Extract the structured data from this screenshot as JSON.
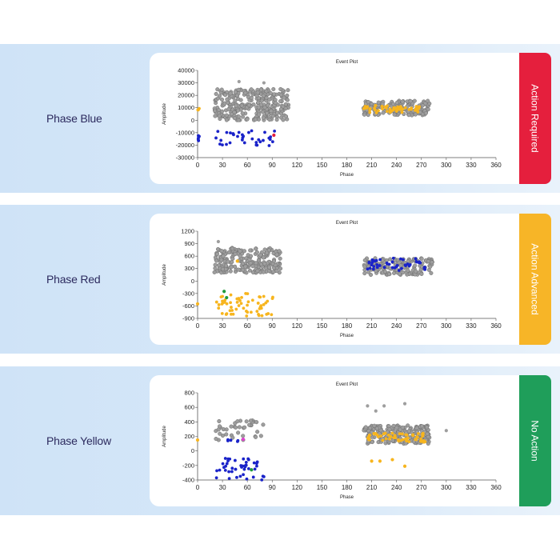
{
  "rows": [
    {
      "phase_label": "Phase Blue",
      "status": "Action Required",
      "status_color": "#e51f3d",
      "chart": {
        "type": "scatter",
        "title": "Event Plot",
        "xlabel": "Phase",
        "ylabel": "Amplitude",
        "xlim": [
          0,
          360
        ],
        "ylim": [
          -30000,
          40000
        ],
        "xticks": [
          0,
          30,
          60,
          90,
          120,
          150,
          180,
          210,
          240,
          270,
          300,
          330,
          360
        ],
        "xtick_labels": [
          "0",
          "30",
          "60",
          "90",
          "120",
          "150",
          "180",
          "210",
          "240",
          "270",
          "300",
          "330",
          "360"
        ],
        "yticks": [
          40000,
          30000,
          20000,
          10000,
          0,
          -10000,
          -20000,
          -30000
        ],
        "ytick_labels": [
          "40000",
          "30000",
          "20000",
          "10000",
          "0",
          "-10000",
          "-20000",
          "-30000"
        ],
        "clusters": [
          {
            "color": "#9e9e9e",
            "x_range": [
              20,
              110
            ],
            "y_range": [
              0,
              25000
            ],
            "count": 300,
            "outline": true
          },
          {
            "color": "#9e9e9e",
            "x_range": [
              200,
              280
            ],
            "y_range": [
              4000,
              16000
            ],
            "count": 160,
            "outline": true
          },
          {
            "color": "#f7b51e",
            "x_range": [
              200,
              270
            ],
            "y_range": [
              6000,
              12000
            ],
            "count": 55
          },
          {
            "color": "#1a23c9",
            "x_range": [
              22,
              95
            ],
            "y_range": [
              -21000,
              -8000
            ],
            "count": 35
          },
          {
            "color": "#1a23c9",
            "x_range": [
              0,
              2
            ],
            "y_range": [
              -17000,
              -10000
            ],
            "count": 6
          },
          {
            "color": "#f7b51e",
            "x_range": [
              0,
              2
            ],
            "y_range": [
              7000,
              10000
            ],
            "count": 3
          }
        ],
        "points": [
          {
            "x": 50,
            "y": 31000,
            "color": "#9e9e9e"
          },
          {
            "x": 80,
            "y": 30000,
            "color": "#9e9e9e"
          },
          {
            "x": 92,
            "y": -12000,
            "color": "#e51f3d"
          }
        ]
      }
    },
    {
      "phase_label": "Phase Red",
      "status": "Action Advanced",
      "status_color": "#f7b527",
      "chart": {
        "type": "scatter",
        "title": "Event Plot",
        "xlabel": "Phase",
        "ylabel": "Amplitude",
        "xlim": [
          0,
          360
        ],
        "ylim": [
          -900,
          1200
        ],
        "xticks": [
          0,
          30,
          60,
          90,
          120,
          150,
          180,
          210,
          240,
          270,
          300,
          330,
          360
        ],
        "xtick_labels": [
          "0",
          "30",
          "60",
          "90",
          "120",
          "150",
          "180",
          "210",
          "240",
          "270",
          "300",
          "330",
          "360"
        ],
        "yticks": [
          1200,
          900,
          600,
          300,
          0,
          -300,
          -600,
          -900
        ],
        "ytick_labels": [
          "1200",
          "900",
          "600",
          "300",
          "0",
          "-300",
          "-600",
          "-900"
        ],
        "clusters": [
          {
            "color": "#9e9e9e",
            "x_range": [
              20,
              100
            ],
            "y_range": [
              200,
              800
            ],
            "count": 230,
            "outline": true
          },
          {
            "color": "#9e9e9e",
            "x_range": [
              200,
              285
            ],
            "y_range": [
              150,
              550
            ],
            "count": 150,
            "outline": true
          },
          {
            "color": "#1a23c9",
            "x_range": [
              205,
              275
            ],
            "y_range": [
              250,
              550
            ],
            "count": 45
          },
          {
            "color": "#f7b51e",
            "x_range": [
              22,
              92
            ],
            "y_range": [
              -850,
              -300
            ],
            "count": 60
          }
        ],
        "points": [
          {
            "x": 32,
            "y": -250,
            "color": "#1f9a3a"
          },
          {
            "x": 35,
            "y": -400,
            "color": "#1f9a3a"
          },
          {
            "x": 48,
            "y": 480,
            "color": "#f7b51e"
          },
          {
            "x": 0,
            "y": -550,
            "color": "#f7b51e"
          },
          {
            "x": 25,
            "y": 950,
            "color": "#9e9e9e"
          }
        ]
      }
    },
    {
      "phase_label": "Phase Yellow",
      "status": "No Action",
      "status_color": "#1f9e5a",
      "chart": {
        "type": "scatter",
        "title": "Event Plot",
        "xlabel": "Phase",
        "ylabel": "Amplitude",
        "xlim": [
          0,
          360
        ],
        "ylim": [
          -400,
          800
        ],
        "xticks": [
          0,
          30,
          60,
          90,
          120,
          150,
          180,
          210,
          240,
          270,
          300,
          330,
          360
        ],
        "xtick_labels": [
          "0",
          "30",
          "60",
          "90",
          "120",
          "150",
          "180",
          "210",
          "240",
          "270",
          "300",
          "330",
          "360"
        ],
        "yticks": [
          800,
          600,
          400,
          200,
          0,
          -200,
          -400
        ],
        "ytick_labels": [
          "800",
          "600",
          "400",
          "200",
          "0",
          "-200",
          "-400"
        ],
        "clusters": [
          {
            "color": "#9e9e9e",
            "x_range": [
              22,
              80
            ],
            "y_range": [
              150,
              420
            ],
            "count": 40,
            "outline": true
          },
          {
            "color": "#9e9e9e",
            "x_range": [
              200,
              280
            ],
            "y_range": [
              100,
              350
            ],
            "count": 230,
            "outline": true
          },
          {
            "color": "#f7b51e",
            "x_range": [
              205,
              275
            ],
            "y_range": [
              120,
              250
            ],
            "count": 60
          },
          {
            "color": "#1a23c9",
            "x_range": [
              22,
              80
            ],
            "y_range": [
              -400,
              -100
            ],
            "count": 45
          },
          {
            "color": "#1a23c9",
            "x_range": [
              26,
              50
            ],
            "y_range": [
              130,
              170
            ],
            "count": 5
          }
        ],
        "points": [
          {
            "x": 205,
            "y": 620,
            "color": "#9e9e9e"
          },
          {
            "x": 215,
            "y": 550,
            "color": "#9e9e9e"
          },
          {
            "x": 225,
            "y": 620,
            "color": "#9e9e9e"
          },
          {
            "x": 250,
            "y": 650,
            "color": "#9e9e9e"
          },
          {
            "x": 300,
            "y": 280,
            "color": "#9e9e9e"
          },
          {
            "x": 55,
            "y": 160,
            "color": "#e040d0"
          },
          {
            "x": 65,
            "y": -260,
            "color": "#1f9a3a"
          },
          {
            "x": 0,
            "y": 150,
            "color": "#f7b51e"
          },
          {
            "x": 210,
            "y": -140,
            "color": "#f7b51e"
          },
          {
            "x": 220,
            "y": -140,
            "color": "#f7b51e"
          },
          {
            "x": 235,
            "y": -120,
            "color": "#f7b51e"
          },
          {
            "x": 250,
            "y": -210,
            "color": "#f7b51e"
          }
        ]
      }
    }
  ]
}
